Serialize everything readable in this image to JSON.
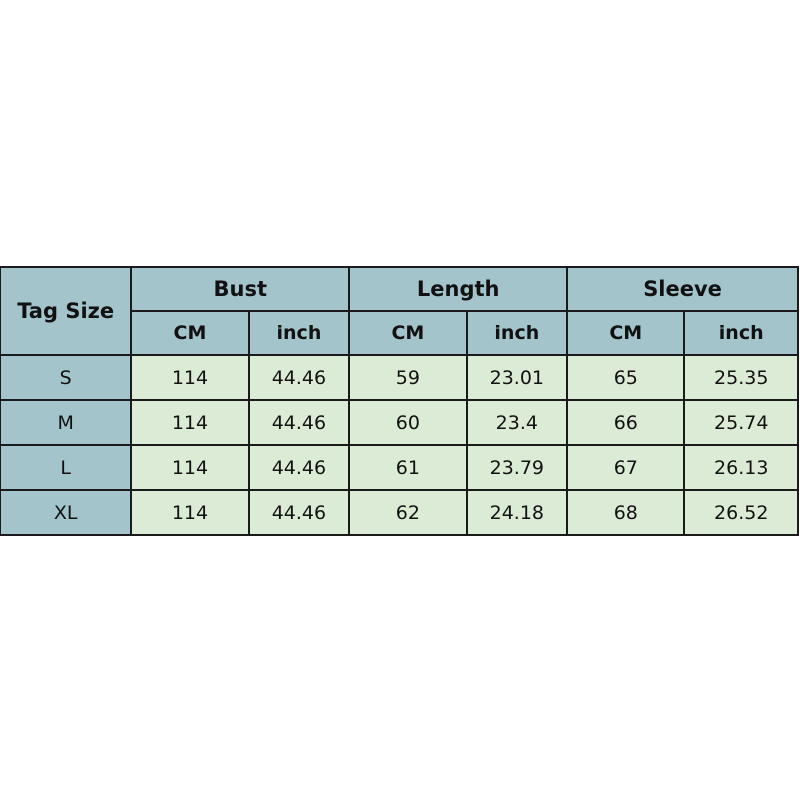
{
  "header": {
    "tag_size": "Tag Size",
    "groups": [
      "Bust",
      "Length",
      "Sleeve"
    ],
    "units": [
      "CM",
      "inch",
      "CM",
      "inch",
      "CM",
      "inch"
    ]
  },
  "rows": [
    {
      "size": "S",
      "values": [
        "114",
        "44.46",
        "59",
        "23.01",
        "65",
        "25.35"
      ]
    },
    {
      "size": "M",
      "values": [
        "114",
        "44.46",
        "60",
        "23.4",
        "66",
        "25.74"
      ]
    },
    {
      "size": "L",
      "values": [
        "114",
        "44.46",
        "61",
        "23.79",
        "67",
        "26.13"
      ]
    },
    {
      "size": "XL",
      "values": [
        "114",
        "44.46",
        "62",
        "24.18",
        "68",
        "26.52"
      ]
    }
  ],
  "colors": {
    "header_bg": "#a3c4cb",
    "cell_bg": "#dcebd5"
  }
}
